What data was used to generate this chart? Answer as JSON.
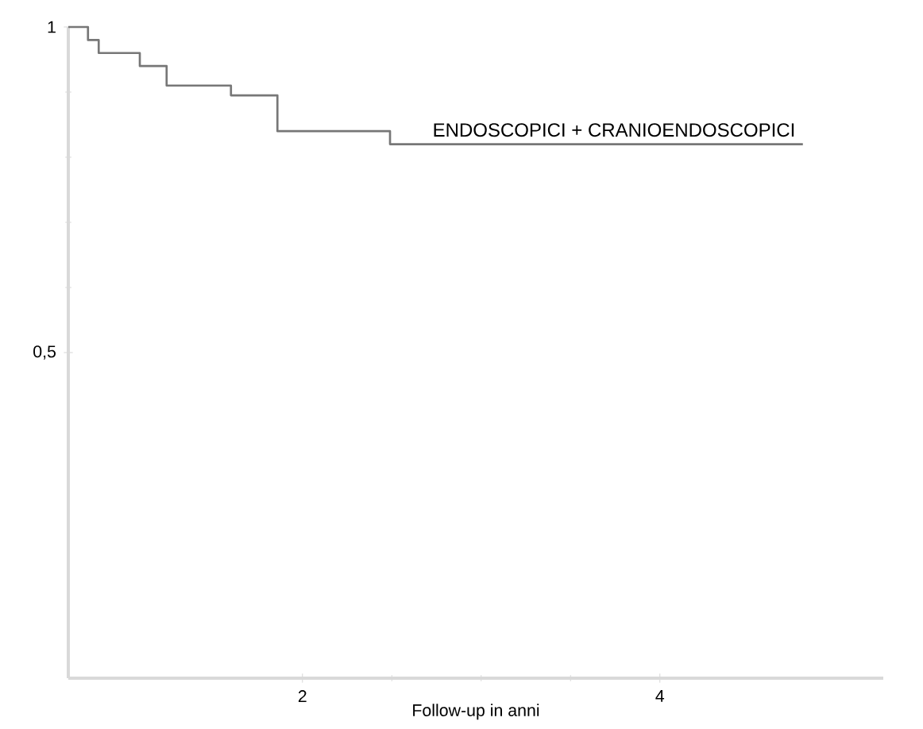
{
  "chart_data": {
    "type": "step",
    "xlabel": "Follow-up in anni",
    "x": [
      0.69,
      0.8,
      0.86,
      1.09,
      1.24,
      1.6,
      1.86,
      2.49,
      4.8
    ],
    "series": [
      {
        "name": "ENDOSCOPICI + CRANIOENDOSCOPICI",
        "color": "#777777",
        "values": [
          1.0,
          0.98,
          0.96,
          0.94,
          0.91,
          0.895,
          0.84,
          0.82,
          0.82
        ]
      }
    ],
    "xlim": [
      0.69,
      5.25
    ],
    "ylim": [
      0,
      1
    ],
    "xticks": [
      2,
      4
    ],
    "yticks": [
      {
        "value": 0.5,
        "label": "0,5"
      },
      1
    ],
    "grid": false,
    "marker": "none",
    "line_style": "solid"
  }
}
